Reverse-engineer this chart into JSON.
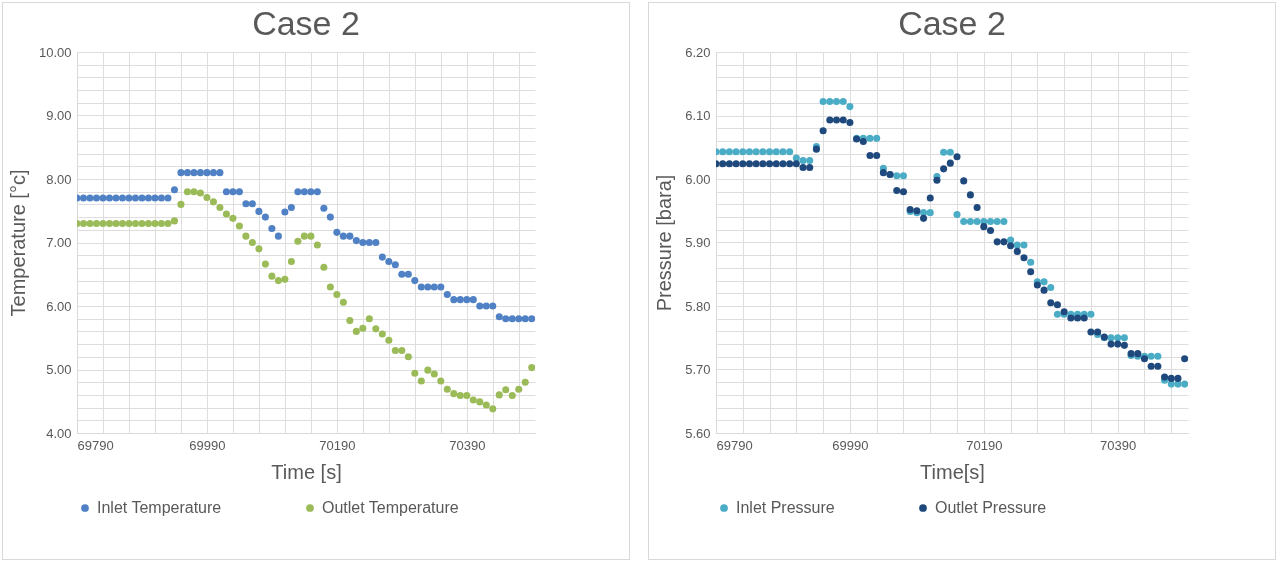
{
  "chart_data": [
    {
      "type": "scatter",
      "title": "Case 2",
      "xlabel": "Time [s]",
      "ylabel": "Temperature [°c]",
      "marker": "circle",
      "legend": "bottom",
      "grid": true,
      "x": [
        69790,
        69800,
        69810,
        69820,
        69830,
        69840,
        69850,
        69860,
        69870,
        69880,
        69890,
        69900,
        69910,
        69920,
        69930,
        69940,
        69950,
        69960,
        69970,
        69980,
        69990,
        70000,
        70010,
        70020,
        70030,
        70040,
        70050,
        70060,
        70070,
        70080,
        70090,
        70100,
        70110,
        70120,
        70130,
        70140,
        70150,
        70160,
        70170,
        70180,
        70190,
        70200,
        70210,
        70220,
        70230,
        70240,
        70250,
        70260,
        70270,
        70280,
        70290,
        70300,
        70310,
        70320,
        70330,
        70340,
        70350,
        70360,
        70370,
        70380,
        70390,
        70400,
        70410,
        70420,
        70430,
        70440,
        70450,
        70460,
        70470,
        70480,
        70490
      ],
      "xlim": [
        69790,
        70495
      ],
      "xticks": [
        69790,
        {
          "value": 69830,
          "label": null
        },
        {
          "value": 69870,
          "label": null
        },
        {
          "value": 69910,
          "label": null
        },
        {
          "value": 69950,
          "label": null
        },
        69990,
        {
          "value": 70030,
          "label": null
        },
        {
          "value": 70070,
          "label": null
        },
        {
          "value": 70110,
          "label": null
        },
        {
          "value": 70150,
          "label": null
        },
        70190,
        {
          "value": 70230,
          "label": null
        },
        {
          "value": 70270,
          "label": null
        },
        {
          "value": 70310,
          "label": null
        },
        {
          "value": 70350,
          "label": null
        },
        70390,
        {
          "value": 70430,
          "label": null
        },
        {
          "value": 70470,
          "label": null
        }
      ],
      "ylim": [
        4,
        10
      ],
      "yticks": [
        {
          "value": 4,
          "label": "4.00"
        },
        {
          "value": 4.2,
          "label": null
        },
        {
          "value": 4.4,
          "label": null
        },
        {
          "value": 4.6,
          "label": null
        },
        {
          "value": 4.8,
          "label": null
        },
        {
          "value": 5,
          "label": "5.00"
        },
        {
          "value": 5.2,
          "label": null
        },
        {
          "value": 5.4,
          "label": null
        },
        {
          "value": 5.6,
          "label": null
        },
        {
          "value": 5.8,
          "label": null
        },
        {
          "value": 6,
          "label": "6.00"
        },
        {
          "value": 6.2,
          "label": null
        },
        {
          "value": 6.4,
          "label": null
        },
        {
          "value": 6.6,
          "label": null
        },
        {
          "value": 6.8,
          "label": null
        },
        {
          "value": 7,
          "label": "7.00"
        },
        {
          "value": 7.2,
          "label": null
        },
        {
          "value": 7.4,
          "label": null
        },
        {
          "value": 7.6,
          "label": null
        },
        {
          "value": 7.8,
          "label": null
        },
        {
          "value": 8,
          "label": "8.00"
        },
        {
          "value": 8.2,
          "label": null
        },
        {
          "value": 8.4,
          "label": null
        },
        {
          "value": 8.6,
          "label": null
        },
        {
          "value": 8.8,
          "label": null
        },
        {
          "value": 9,
          "label": "9.00"
        },
        {
          "value": 9.2,
          "label": null
        },
        {
          "value": 9.4,
          "label": null
        },
        {
          "value": 9.6,
          "label": null
        },
        {
          "value": 9.8,
          "label": null
        },
        {
          "value": 10,
          "label": "10.00"
        }
      ],
      "series": [
        {
          "name": "Inlet Temperature",
          "color": "#4f81c4",
          "values": [
            7.7,
            7.7,
            7.7,
            7.7,
            7.7,
            7.7,
            7.7,
            7.7,
            7.7,
            7.7,
            7.7,
            7.7,
            7.7,
            7.7,
            7.7,
            7.83,
            8.1,
            8.1,
            8.1,
            8.1,
            8.1,
            8.1,
            8.1,
            7.8,
            7.8,
            7.8,
            7.61,
            7.61,
            7.49,
            7.4,
            7.22,
            7.1,
            7.48,
            7.55,
            7.8,
            7.8,
            7.8,
            7.8,
            7.54,
            7.4,
            7.16,
            7.1,
            7.1,
            7.03,
            7.0,
            7.0,
            7.0,
            6.77,
            6.7,
            6.65,
            6.5,
            6.5,
            6.4,
            6.3,
            6.3,
            6.3,
            6.3,
            6.18,
            6.1,
            6.1,
            6.1,
            6.1,
            6.0,
            6.0,
            6.0,
            5.83,
            5.8,
            5.8,
            5.8,
            5.8,
            5.8
          ]
        },
        {
          "name": "Outlet Temperature",
          "color": "#9bbb59",
          "values": [
            7.3,
            7.3,
            7.3,
            7.3,
            7.3,
            7.3,
            7.3,
            7.3,
            7.3,
            7.3,
            7.3,
            7.3,
            7.3,
            7.3,
            7.3,
            7.34,
            7.6,
            7.8,
            7.8,
            7.78,
            7.71,
            7.64,
            7.55,
            7.45,
            7.38,
            7.26,
            7.1,
            7.0,
            6.9,
            6.66,
            6.47,
            6.4,
            6.42,
            6.7,
            7.02,
            7.1,
            7.1,
            6.96,
            6.61,
            6.3,
            6.18,
            6.06,
            5.77,
            5.6,
            5.65,
            5.8,
            5.64,
            5.56,
            5.46,
            5.3,
            5.3,
            5.2,
            4.94,
            4.82,
            4.99,
            4.93,
            4.82,
            4.69,
            4.62,
            4.59,
            4.59,
            4.52,
            4.49,
            4.44,
            4.38,
            4.6,
            4.68,
            4.59,
            4.69,
            4.8,
            5.03
          ]
        }
      ]
    },
    {
      "type": "scatter",
      "title": "Case 2",
      "xlabel": "Time[s]",
      "ylabel": "Pressure [bara]",
      "marker": "circle",
      "legend": "bottom",
      "grid": true,
      "x": [
        69790,
        69800,
        69810,
        69820,
        69830,
        69840,
        69850,
        69860,
        69870,
        69880,
        69890,
        69900,
        69910,
        69920,
        69930,
        69940,
        69950,
        69960,
        69970,
        69980,
        69990,
        70000,
        70010,
        70020,
        70030,
        70040,
        70050,
        70060,
        70070,
        70080,
        70090,
        70100,
        70110,
        70120,
        70130,
        70140,
        70150,
        70160,
        70170,
        70180,
        70190,
        70200,
        70210,
        70220,
        70230,
        70240,
        70250,
        70260,
        70270,
        70280,
        70290,
        70300,
        70310,
        70320,
        70330,
        70340,
        70350,
        70360,
        70370,
        70380,
        70390,
        70400,
        70410,
        70420,
        70430,
        70440,
        70450,
        70460,
        70470,
        70480,
        70490
      ],
      "xlim": [
        69790,
        70495
      ],
      "xticks": [
        69790,
        {
          "value": 69830,
          "label": null
        },
        {
          "value": 69870,
          "label": null
        },
        {
          "value": 69910,
          "label": null
        },
        {
          "value": 69950,
          "label": null
        },
        69990,
        {
          "value": 70030,
          "label": null
        },
        {
          "value": 70070,
          "label": null
        },
        {
          "value": 70110,
          "label": null
        },
        {
          "value": 70150,
          "label": null
        },
        70190,
        {
          "value": 70230,
          "label": null
        },
        {
          "value": 70270,
          "label": null
        },
        {
          "value": 70310,
          "label": null
        },
        {
          "value": 70350,
          "label": null
        },
        70390,
        {
          "value": 70430,
          "label": null
        },
        {
          "value": 70470,
          "label": null
        }
      ],
      "ylim": [
        5.6,
        6.2
      ],
      "yticks": [
        {
          "value": 5.6,
          "label": "5.60"
        },
        {
          "value": 5.62,
          "label": null
        },
        {
          "value": 5.64,
          "label": null
        },
        {
          "value": 5.66,
          "label": null
        },
        {
          "value": 5.68,
          "label": null
        },
        {
          "value": 5.7,
          "label": "5.70"
        },
        {
          "value": 5.72,
          "label": null
        },
        {
          "value": 5.74,
          "label": null
        },
        {
          "value": 5.76,
          "label": null
        },
        {
          "value": 5.78,
          "label": null
        },
        {
          "value": 5.8,
          "label": "5.80"
        },
        {
          "value": 5.82,
          "label": null
        },
        {
          "value": 5.84,
          "label": null
        },
        {
          "value": 5.86,
          "label": null
        },
        {
          "value": 5.88,
          "label": null
        },
        {
          "value": 5.9,
          "label": "5.90"
        },
        {
          "value": 5.92,
          "label": null
        },
        {
          "value": 5.94,
          "label": null
        },
        {
          "value": 5.96,
          "label": null
        },
        {
          "value": 5.98,
          "label": null
        },
        {
          "value": 6,
          "label": "6.00"
        },
        {
          "value": 6.02,
          "label": null
        },
        {
          "value": 6.04,
          "label": null
        },
        {
          "value": 6.06,
          "label": null
        },
        {
          "value": 6.08,
          "label": null
        },
        {
          "value": 6.1,
          "label": "6.10"
        },
        {
          "value": 6.12,
          "label": null
        },
        {
          "value": 6.14,
          "label": null
        },
        {
          "value": 6.16,
          "label": null
        },
        {
          "value": 6.18,
          "label": null
        },
        {
          "value": 6.2,
          "label": "6.20"
        }
      ],
      "series": [
        {
          "name": "Inlet Pressure",
          "color": "#4bacc6",
          "values": [
            6.043,
            6.043,
            6.043,
            6.043,
            6.043,
            6.043,
            6.043,
            6.043,
            6.043,
            6.043,
            6.043,
            6.043,
            6.033,
            6.029,
            6.029,
            6.051,
            6.122,
            6.122,
            6.122,
            6.122,
            6.114,
            6.064,
            6.064,
            6.064,
            6.064,
            6.017,
            6.007,
            6.005,
            6.005,
            5.949,
            5.947,
            5.947,
            5.947,
            6.004,
            6.042,
            6.042,
            5.944,
            5.933,
            5.933,
            5.933,
            5.933,
            5.933,
            5.933,
            5.933,
            5.904,
            5.896,
            5.896,
            5.869,
            5.838,
            5.838,
            5.829,
            5.787,
            5.787,
            5.787,
            5.787,
            5.787,
            5.787,
            5.755,
            5.75,
            5.75,
            5.75,
            5.75,
            5.722,
            5.721,
            5.721,
            5.721,
            5.721,
            5.683,
            5.677,
            5.677,
            5.677
          ]
        },
        {
          "name": "Outlet Pressure",
          "color": "#1f497d",
          "values": [
            6.024,
            6.024,
            6.024,
            6.024,
            6.024,
            6.024,
            6.024,
            6.024,
            6.024,
            6.024,
            6.024,
            6.024,
            6.024,
            6.018,
            6.018,
            6.047,
            6.076,
            6.093,
            6.093,
            6.093,
            6.089,
            6.063,
            6.059,
            6.037,
            6.037,
            6.01,
            6.007,
            5.982,
            5.98,
            5.952,
            5.95,
            5.938,
            5.97,
            5.998,
            6.016,
            6.025,
            6.035,
            5.997,
            5.975,
            5.955,
            5.925,
            5.919,
            5.901,
            5.901,
            5.895,
            5.886,
            5.876,
            5.854,
            5.833,
            5.825,
            5.805,
            5.802,
            5.791,
            5.781,
            5.781,
            5.781,
            5.759,
            5.759,
            5.751,
            5.74,
            5.74,
            5.738,
            5.725,
            5.725,
            5.717,
            5.705,
            5.705,
            5.688,
            5.686,
            5.686,
            5.717
          ]
        }
      ]
    }
  ]
}
